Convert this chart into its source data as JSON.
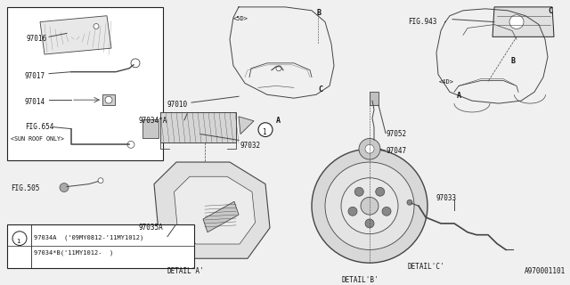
{
  "bg_color": "#f0f0f0",
  "line_color": "#444444",
  "border_color": "#222222",
  "text_color": "#111111",
  "fig_size": [
    6.4,
    3.2
  ],
  "dpi": 100,
  "title": "A970001101",
  "note1": "97034A  ('09MY0812-'11MY1012)",
  "note2": "97034*B('11MY1012-  )"
}
